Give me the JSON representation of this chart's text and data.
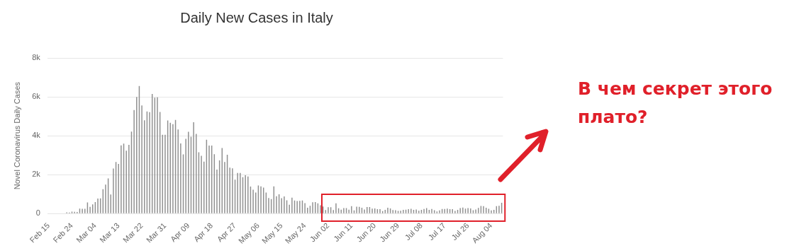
{
  "chart_data": {
    "type": "bar",
    "title": "Daily New Cases in Italy",
    "ylabel": "Novel Coronavirus Daily Cases",
    "annotations": [
      "В чем секрет этого плато?"
    ],
    "categories": [
      "Feb 15",
      null,
      null,
      null,
      null,
      null,
      null,
      null,
      null,
      "Feb 24",
      null,
      null,
      null,
      null,
      null,
      null,
      null,
      null,
      "Mar 04",
      null,
      null,
      null,
      null,
      null,
      null,
      null,
      null,
      "Mar 13",
      null,
      null,
      null,
      null,
      null,
      null,
      null,
      null,
      "Mar 22",
      null,
      null,
      null,
      null,
      null,
      null,
      null,
      null,
      "Mar 31",
      null,
      null,
      null,
      null,
      null,
      null,
      null,
      null,
      "Apr 09",
      null,
      null,
      null,
      null,
      null,
      null,
      null,
      null,
      "Apr 18",
      null,
      null,
      null,
      null,
      null,
      null,
      null,
      null,
      "Apr 27",
      null,
      null,
      null,
      null,
      null,
      null,
      null,
      null,
      "May 06",
      null,
      null,
      null,
      null,
      null,
      null,
      null,
      null,
      "May 15",
      null,
      null,
      null,
      null,
      null,
      null,
      null,
      null,
      "May 24",
      null,
      null,
      null,
      null,
      null,
      null,
      null,
      null,
      "Jun 02",
      null,
      null,
      null,
      null,
      null,
      null,
      null,
      null,
      "Jun 11",
      null,
      null,
      null,
      null,
      null,
      null,
      null,
      null,
      "Jun 20",
      null,
      null,
      null,
      null,
      null,
      null,
      null,
      null,
      "Jun 29",
      null,
      null,
      null,
      null,
      null,
      null,
      null,
      null,
      "Jul 08",
      null,
      null,
      null,
      null,
      null,
      null,
      null,
      null,
      "Jul 17",
      null,
      null,
      null,
      null,
      null,
      null,
      null,
      null,
      "Jul 26",
      null,
      null,
      null,
      null,
      null,
      null,
      null,
      null,
      "Aug 04",
      null,
      null,
      null,
      null
    ],
    "values": [
      0,
      0,
      0,
      0,
      0,
      0,
      null,
      60,
      50,
      100,
      90,
      80,
      250,
      240,
      240,
      570,
      340,
      470,
      590,
      770,
      780,
      1250,
      1490,
      1800,
      980,
      2310,
      2650,
      2550,
      3500,
      3590,
      3230,
      3530,
      4210,
      5320,
      5990,
      6560,
      5560,
      4790,
      5250,
      5210,
      6150,
      5960,
      5970,
      5220,
      4050,
      4050,
      4780,
      4670,
      4590,
      4810,
      4320,
      3600,
      3040,
      3840,
      4200,
      3950,
      4690,
      4090,
      3150,
      2970,
      2670,
      3790,
      3490,
      3490,
      3050,
      2260,
      2730,
      3370,
      2650,
      3020,
      2360,
      2320,
      1740,
      2090,
      2090,
      1870,
      1970,
      1900,
      1390,
      1220,
      1080,
      1440,
      1400,
      1330,
      1080,
      800,
      740,
      1400,
      890,
      990,
      790,
      880,
      680,
      450,
      810,
      670,
      640,
      650,
      670,
      530,
      300,
      400,
      580,
      590,
      520,
      420,
      360,
      180,
      320,
      320,
      180,
      520,
      270,
      200,
      280,
      280,
      200,
      380,
      160,
      350,
      340,
      300,
      210,
      330,
      330,
      250,
      260,
      220,
      220,
      120,
      190,
      300,
      260,
      180,
      170,
      130,
      140,
      190,
      200,
      220,
      240,
      190,
      210,
      140,
      190,
      230,
      280,
      190,
      230,
      170,
      110,
      160,
      230,
      230,
      250,
      220,
      220,
      130,
      190,
      280,
      310,
      250,
      280,
      260,
      170,
      210,
      290,
      390,
      380,
      300,
      240,
      160,
      190,
      380,
      400,
      550
    ],
    "color": "#8e8e8e",
    "ylim": [
      0,
      8000
    ],
    "yticks": [
      {
        "value": 0,
        "label": "0"
      },
      {
        "value": 2000,
        "label": "2k"
      },
      {
        "value": 4000,
        "label": "4k"
      },
      {
        "value": 6000,
        "label": "6k"
      },
      {
        "value": 8000,
        "label": "8k"
      }
    ],
    "grid": "y",
    "legend": false
  }
}
